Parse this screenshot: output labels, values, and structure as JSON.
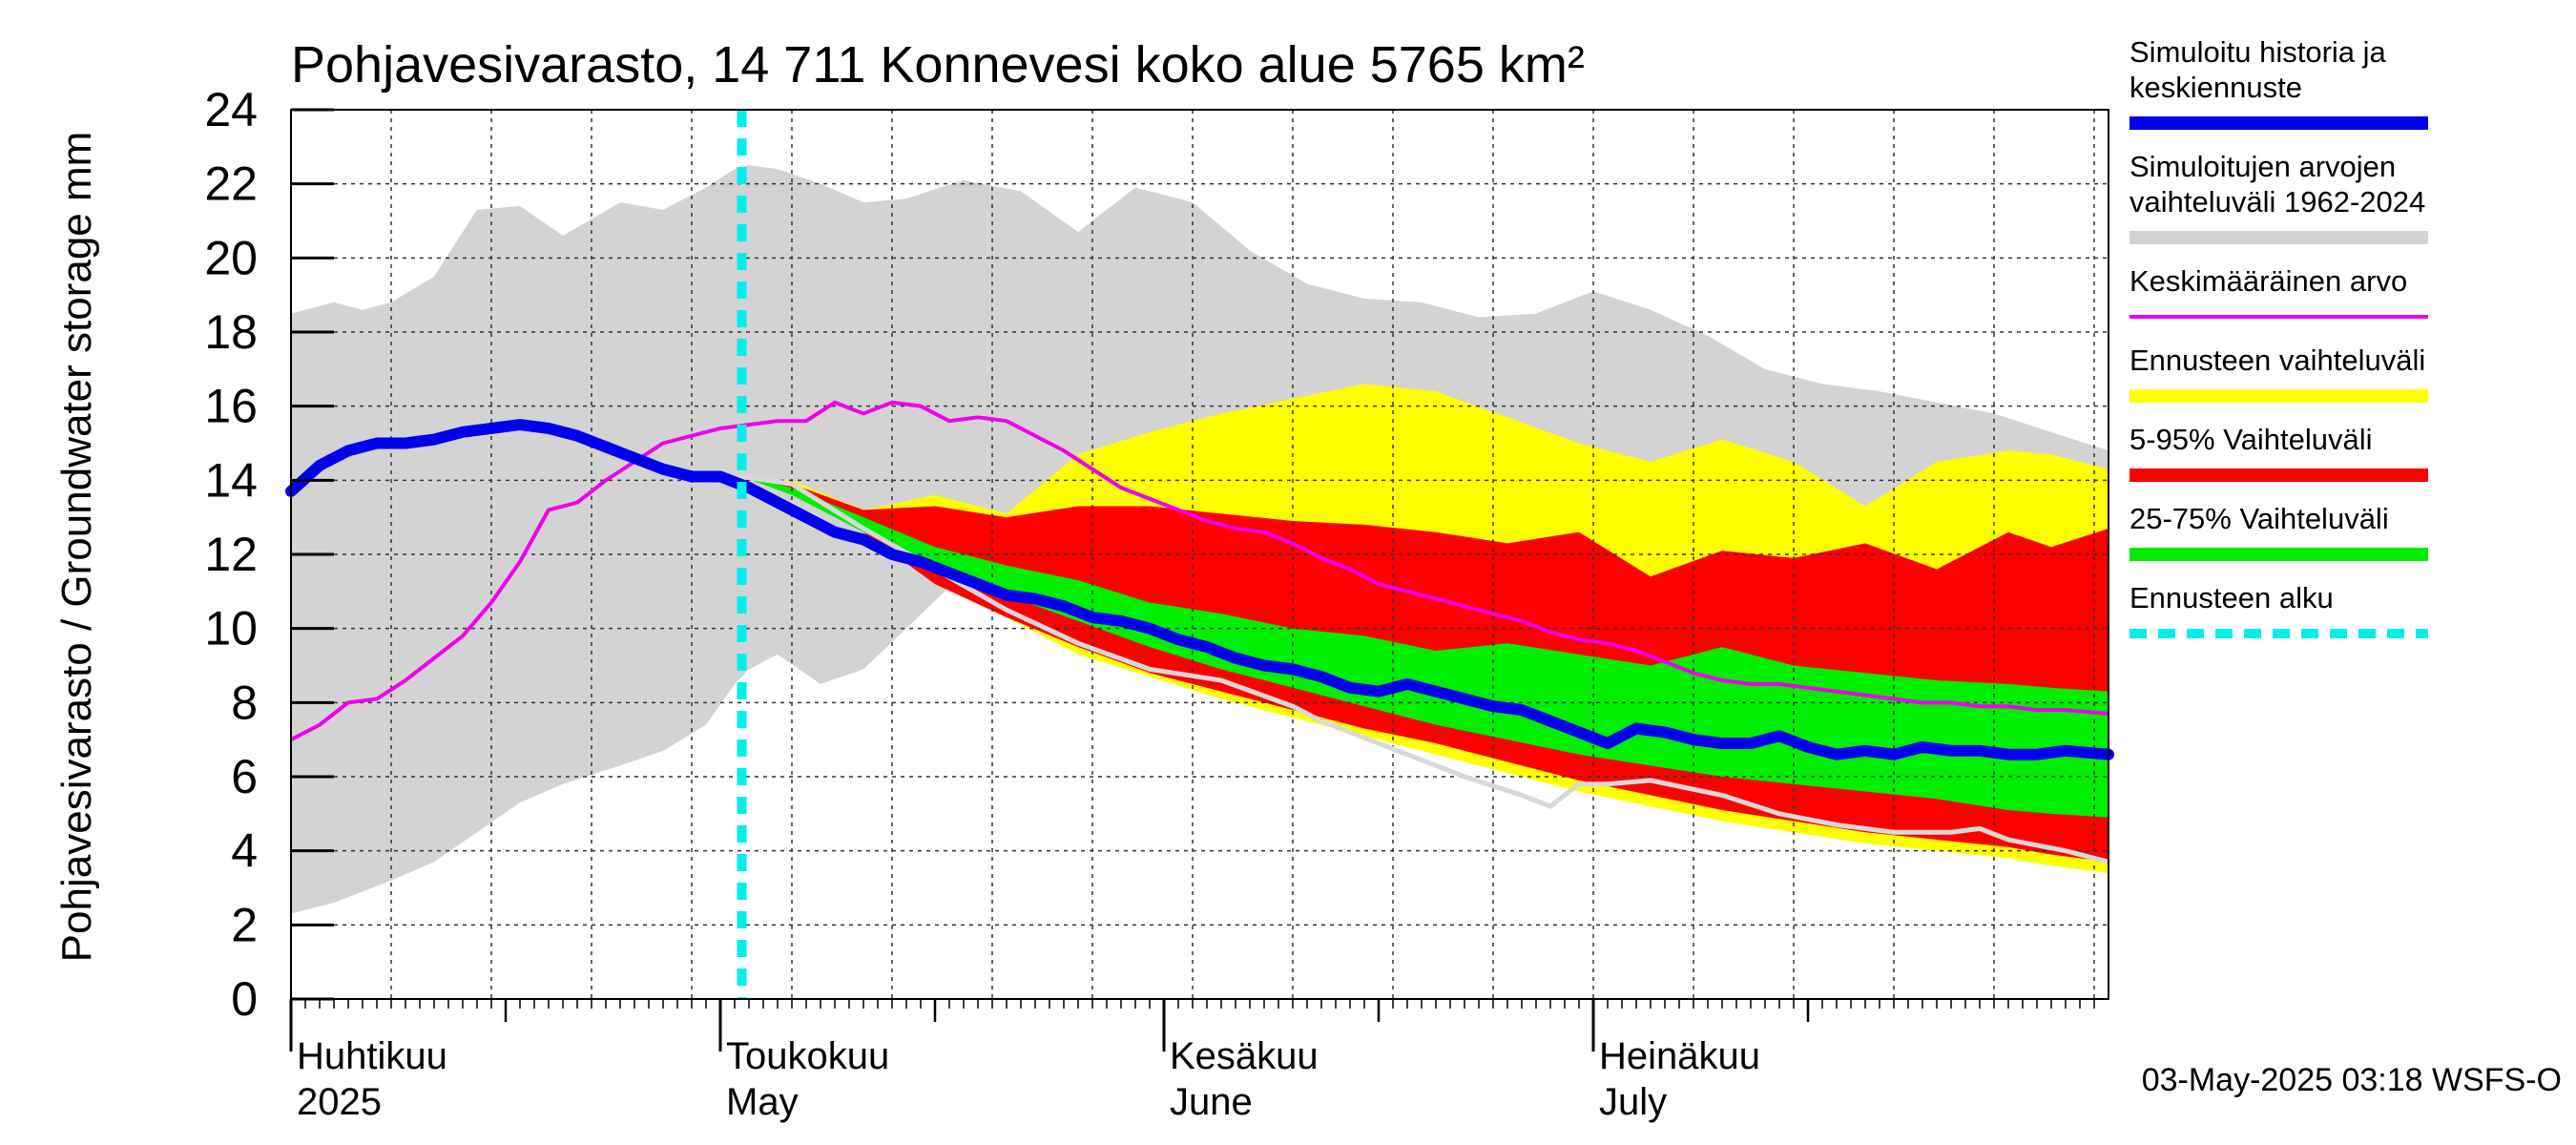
{
  "chart_data": {
    "type": "area",
    "title": "Pohjavesivarasto, 14 711 Konnevesi koko alue 5765 km²",
    "ylabel": "Pohjavesivarasto / Groundwater storage   mm",
    "ylim": [
      0,
      24
    ],
    "yticks": [
      "0",
      "2",
      "4",
      "6",
      "8",
      "10",
      "12",
      "14",
      "16",
      "18",
      "20",
      "22",
      "24"
    ],
    "xlim": [
      0,
      127
    ],
    "months": [
      {
        "fi": "Huhtikuu",
        "en": "2025",
        "day": 0
      },
      {
        "fi": "Toukokuu",
        "en": "May",
        "day": 30
      },
      {
        "fi": "Kesäkuu",
        "en": "June",
        "day": 61
      },
      {
        "fi": "Heinäkuu",
        "en": "July",
        "day": 91
      }
    ],
    "forecast_start_day": 31.5,
    "footer": "03-May-2025 03:18 WSFS-O",
    "legend": [
      {
        "label": "Simuloitu historia ja keskiennuste",
        "lines": [
          "Simuloitu historia ja",
          "keskiennuste"
        ],
        "color": "#0000ee",
        "kind": "thick"
      },
      {
        "label": "Simuloitujen arvojen vaihteluväli 1962-2024",
        "lines": [
          "Simuloitujen arvojen",
          "vaihteluväli 1962-2024"
        ],
        "color": "#d3d3d3",
        "kind": "thick"
      },
      {
        "label": "Keskimääräinen arvo",
        "lines": [
          "Keskimääräinen arvo"
        ],
        "color": "#ee00ee",
        "kind": "thin"
      },
      {
        "label": "Ennusteen vaihteluväli",
        "lines": [
          "Ennusteen vaihteluväli"
        ],
        "color": "#ffff00",
        "kind": "thick"
      },
      {
        "label": "5-95% Vaihteluväli",
        "lines": [
          "5-95% Vaihteluväli"
        ],
        "color": "#ff0000",
        "kind": "thick"
      },
      {
        "label": "25-75% Vaihteluväli",
        "lines": [
          "25-75% Vaihteluväli"
        ],
        "color": "#00ee00",
        "kind": "thick"
      },
      {
        "label": "Ennusteen alku",
        "lines": [
          "Ennusteen alku"
        ],
        "color": "#00eeee",
        "kind": "dashed"
      }
    ],
    "series": {
      "hist_range": {
        "x": [
          0,
          3,
          5,
          7,
          10,
          13,
          16,
          19,
          23,
          26,
          29,
          31,
          32,
          34,
          37,
          40,
          43,
          47,
          51,
          55,
          59,
          63,
          67,
          71,
          75,
          79,
          83,
          87,
          91,
          95,
          99,
          103,
          107,
          111,
          115,
          119,
          123,
          127
        ],
        "upper": [
          18.5,
          18.8,
          18.6,
          18.8,
          19.5,
          21.3,
          21.4,
          20.6,
          21.5,
          21.3,
          21.9,
          22.4,
          22.5,
          22.4,
          22.0,
          21.5,
          21.6,
          22.1,
          21.8,
          20.7,
          21.9,
          21.5,
          20.2,
          19.3,
          18.9,
          18.8,
          18.4,
          18.5,
          19.1,
          18.6,
          17.9,
          17.0,
          16.6,
          16.4,
          16.1,
          15.8,
          15.3,
          14.8
        ],
        "lower": [
          2.3,
          2.6,
          2.9,
          3.2,
          3.7,
          4.5,
          5.3,
          5.8,
          6.3,
          6.7,
          7.4,
          8.5,
          8.9,
          9.3,
          8.5,
          8.9,
          10.0,
          11.5,
          12.0,
          11.6,
          11.1,
          10.6,
          10.0,
          9.7,
          9.3,
          8.8,
          8.3,
          7.8,
          7.3,
          6.9,
          6.4,
          5.9,
          5.5,
          5.0,
          4.6,
          4.2,
          3.9,
          3.6
        ]
      },
      "forecast_range": {
        "x": [
          31.5,
          35,
          40,
          45,
          50,
          55,
          60,
          65,
          70,
          75,
          80,
          85,
          90,
          95,
          100,
          105,
          110,
          115,
          120,
          123,
          127
        ],
        "upper": [
          14.1,
          14.0,
          13.2,
          13.6,
          13.1,
          14.7,
          15.3,
          15.8,
          16.2,
          16.6,
          16.4,
          15.7,
          15.0,
          14.5,
          15.1,
          14.5,
          13.3,
          14.5,
          14.8,
          14.7,
          14.3
        ],
        "lower": [
          14.1,
          13.7,
          12.8,
          11.4,
          10.3,
          9.3,
          8.7,
          8.1,
          7.6,
          7.1,
          6.6,
          6.1,
          5.6,
          5.2,
          4.8,
          4.5,
          4.2,
          4.0,
          3.8,
          3.6,
          3.4
        ]
      },
      "p5_95": {
        "x": [
          31.5,
          35,
          40,
          45,
          50,
          55,
          60,
          65,
          70,
          75,
          80,
          85,
          90,
          95,
          100,
          105,
          110,
          115,
          120,
          123,
          127
        ],
        "upper": [
          14.1,
          13.9,
          13.2,
          13.3,
          13.0,
          13.3,
          13.3,
          13.1,
          12.9,
          12.8,
          12.6,
          12.3,
          12.6,
          11.4,
          12.1,
          11.9,
          12.3,
          11.6,
          12.6,
          12.2,
          12.7
        ],
        "lower": [
          14.1,
          13.7,
          12.6,
          11.2,
          10.3,
          9.5,
          8.8,
          8.3,
          7.8,
          7.3,
          6.9,
          6.4,
          5.9,
          5.5,
          5.1,
          4.8,
          4.5,
          4.3,
          4.1,
          3.9,
          3.7
        ]
      },
      "p25_75": {
        "x": [
          31.5,
          35,
          40,
          45,
          50,
          55,
          60,
          65,
          70,
          75,
          80,
          85,
          90,
          95,
          100,
          105,
          110,
          115,
          120,
          123,
          127
        ],
        "upper": [
          14.1,
          13.8,
          13.0,
          12.2,
          11.7,
          11.3,
          10.7,
          10.4,
          10.0,
          9.8,
          9.4,
          9.6,
          9.3,
          9.0,
          9.5,
          9.0,
          8.8,
          8.6,
          8.5,
          8.4,
          8.3
        ],
        "lower": [
          14.1,
          13.6,
          12.6,
          11.7,
          10.9,
          10.2,
          9.5,
          8.9,
          8.4,
          7.9,
          7.4,
          7.0,
          6.6,
          6.3,
          6.0,
          5.8,
          5.6,
          5.4,
          5.1,
          5.0,
          4.9
        ]
      },
      "mean": {
        "x": [
          0,
          2,
          4,
          6,
          8,
          10,
          12,
          14,
          16,
          18,
          20,
          22,
          24,
          26,
          28,
          30,
          32,
          34,
          36,
          38,
          40,
          42,
          44,
          46,
          48,
          50,
          52,
          54,
          56,
          58,
          60,
          62,
          64,
          66,
          68,
          70,
          72,
          74,
          76,
          78,
          80,
          82,
          84,
          86,
          88,
          90,
          92,
          94,
          96,
          98,
          100,
          102,
          104,
          106,
          108,
          110,
          112,
          114,
          116,
          118,
          120,
          122,
          124,
          127
        ],
        "values": [
          7.0,
          7.4,
          8.0,
          8.1,
          8.6,
          9.2,
          9.8,
          10.7,
          11.8,
          13.2,
          13.4,
          14.0,
          14.5,
          15.0,
          15.2,
          15.4,
          15.5,
          15.6,
          15.6,
          16.1,
          15.8,
          16.1,
          16.0,
          15.6,
          15.7,
          15.6,
          15.2,
          14.8,
          14.3,
          13.8,
          13.5,
          13.2,
          12.9,
          12.7,
          12.6,
          12.3,
          11.9,
          11.6,
          11.2,
          11.0,
          10.8,
          10.6,
          10.4,
          10.2,
          9.9,
          9.7,
          9.6,
          9.4,
          9.1,
          8.8,
          8.6,
          8.5,
          8.5,
          8.4,
          8.3,
          8.2,
          8.1,
          8.0,
          8.0,
          7.9,
          7.9,
          7.8,
          7.8,
          7.7
        ]
      },
      "gray_line": {
        "x": [
          31.5,
          35,
          40,
          45,
          50,
          55,
          60,
          65,
          70,
          72,
          74,
          78,
          82,
          86,
          88,
          90,
          92,
          95,
          100,
          104,
          108,
          112,
          116,
          118,
          120,
          124,
          127
        ],
        "values": [
          14.1,
          13.9,
          12.7,
          11.6,
          10.5,
          9.6,
          8.9,
          8.6,
          7.9,
          7.5,
          7.2,
          6.6,
          6.0,
          5.5,
          5.2,
          5.8,
          5.8,
          5.9,
          5.5,
          5.0,
          4.7,
          4.5,
          4.5,
          4.6,
          4.3,
          4.0,
          3.7
        ]
      },
      "main": {
        "x": [
          0,
          2,
          4,
          6,
          8,
          10,
          12,
          14,
          16,
          18,
          20,
          22,
          24,
          26,
          28,
          30,
          32,
          34,
          36,
          38,
          40,
          42,
          44,
          46,
          48,
          50,
          52,
          54,
          56,
          58,
          60,
          62,
          64,
          66,
          68,
          70,
          72,
          74,
          76,
          78,
          80,
          82,
          84,
          86,
          88,
          90,
          92,
          94,
          96,
          98,
          100,
          102,
          104,
          106,
          108,
          110,
          112,
          114,
          116,
          118,
          120,
          122,
          124,
          127
        ],
        "values": [
          13.7,
          14.4,
          14.8,
          15.0,
          15.0,
          15.1,
          15.3,
          15.4,
          15.5,
          15.4,
          15.2,
          14.9,
          14.6,
          14.3,
          14.1,
          14.1,
          13.8,
          13.4,
          13.0,
          12.6,
          12.4,
          12.0,
          11.8,
          11.5,
          11.2,
          10.9,
          10.8,
          10.6,
          10.3,
          10.2,
          10.0,
          9.7,
          9.5,
          9.2,
          9.0,
          8.9,
          8.7,
          8.4,
          8.3,
          8.5,
          8.3,
          8.1,
          7.9,
          7.8,
          7.5,
          7.2,
          6.9,
          7.3,
          7.2,
          7.0,
          6.9,
          6.9,
          7.1,
          6.8,
          6.6,
          6.7,
          6.6,
          6.8,
          6.7,
          6.7,
          6.6,
          6.6,
          6.7,
          6.6
        ]
      }
    }
  }
}
